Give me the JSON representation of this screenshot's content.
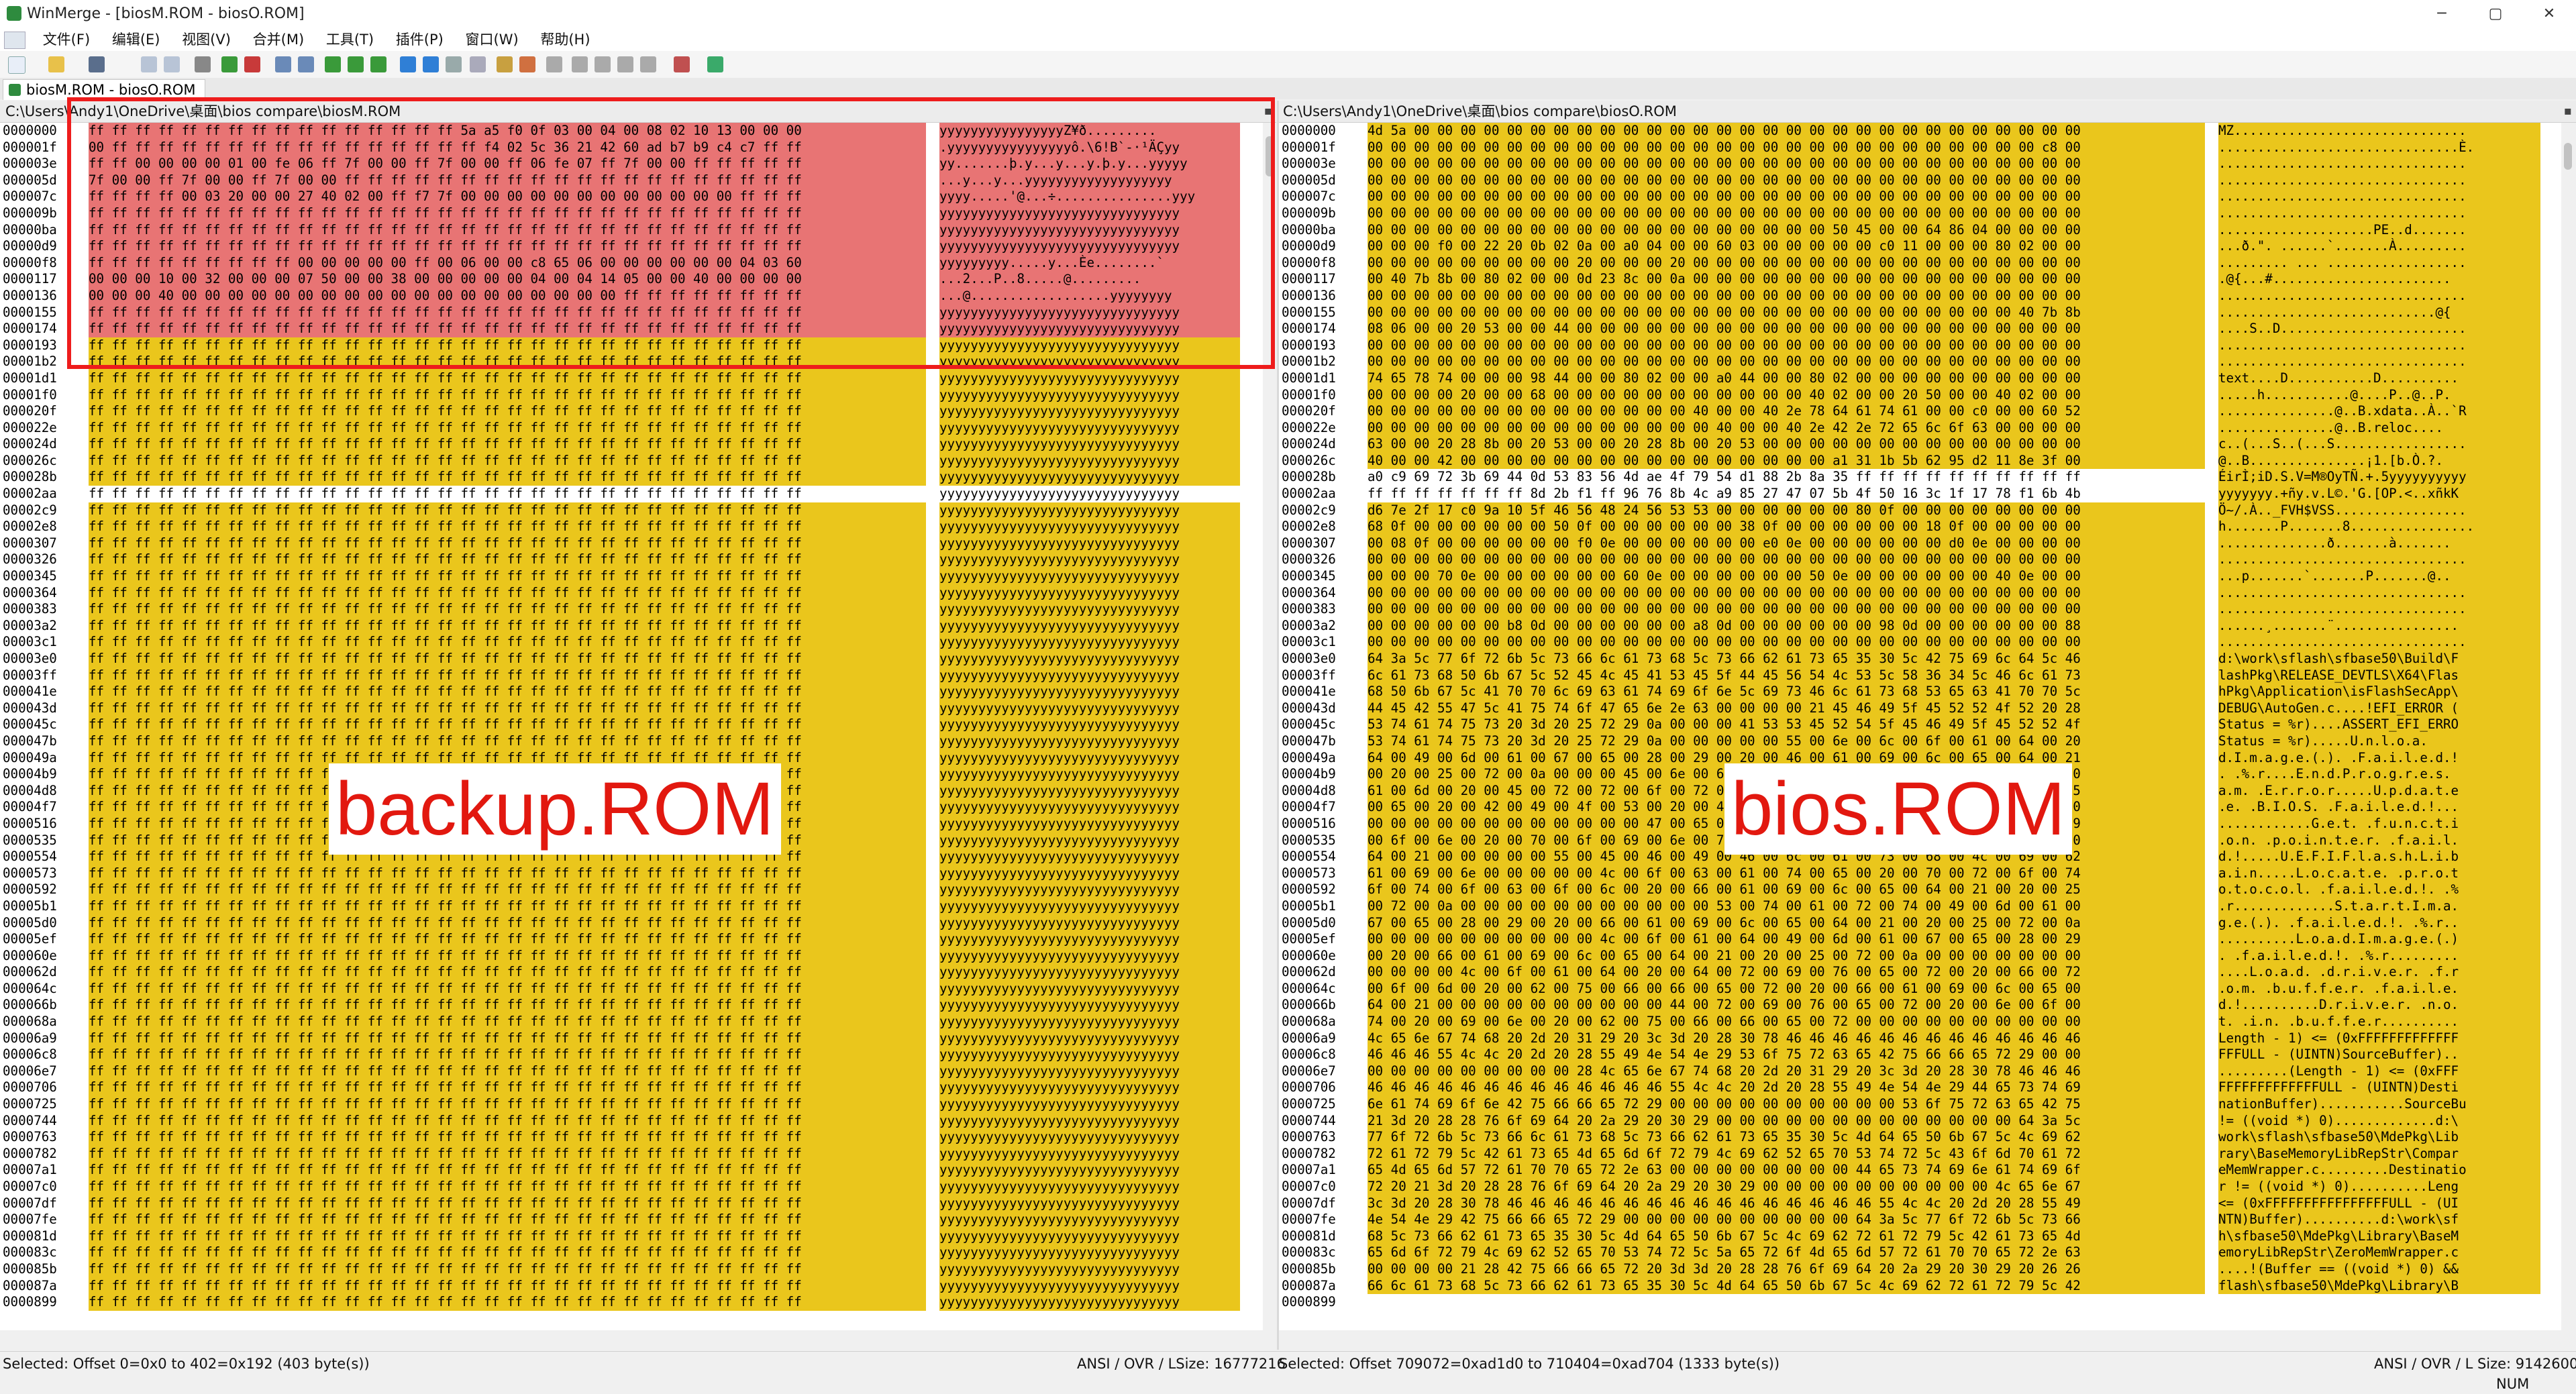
{
  "window": {
    "app_title": "WinMerge - [biosM.ROM - biosO.ROM]",
    "controls": [
      "─",
      "▢",
      "✕"
    ]
  },
  "menu": [
    "文件(F)",
    "编辑(E)",
    "视图(V)",
    "合并(M)",
    "工具(T)",
    "插件(P)",
    "窗口(W)",
    "帮助(H)"
  ],
  "tab": {
    "label": "biosM.ROM - biosO.ROM"
  },
  "left_pane": {
    "path": "C:\\Users\\Andy1\\OneDrive\\桌面\\bios compare\\biosM.ROM",
    "status_selected": "Selected: Offset 0=0x0 to 402=0x192 (403 byte(s))",
    "status_mode": "ANSI / OVR / LSize: 16777216"
  },
  "right_pane": {
    "path": "C:\\Users\\Andy1\\OneDrive\\桌面\\bios compare\\biosO.ROM",
    "status_selected": "Selected: Offset 709072=0xad1d0 to 710404=0xad704 (1333 byte(s))",
    "status_mode": "ANSI / OVR / L Size: 9142600",
    "status_num": "NUM"
  },
  "annotations": {
    "left_label": "backup.ROM",
    "right_label": "bios.ROM"
  },
  "offsets": [
    "0000000",
    "000001f",
    "000003e",
    "000005d",
    "000007c",
    "000009b",
    "00000ba",
    "00000d9",
    "00000f8",
    "0000117",
    "0000136",
    "0000155",
    "0000174",
    "0000193",
    "00001b2",
    "00001d1",
    "00001f0",
    "000020f",
    "000022e",
    "000024d",
    "000026c",
    "000028b",
    "00002aa",
    "00002c9",
    "00002e8",
    "0000307",
    "0000326",
    "0000345",
    "0000364",
    "0000383",
    "00003a2",
    "00003c1",
    "00003e0",
    "00003ff",
    "000041e",
    "000043d",
    "000045c",
    "000047b",
    "000049a",
    "00004b9",
    "00004d8",
    "00004f7",
    "0000516",
    "0000535",
    "0000554",
    "0000573",
    "0000592",
    "00005b1",
    "00005d0",
    "00005ef",
    "000060e",
    "000062d",
    "000064c",
    "000066b",
    "000068a",
    "00006a9",
    "00006c8",
    "00006e7",
    "0000706",
    "0000725",
    "0000744",
    "0000763",
    "0000782",
    "00007a1",
    "00007c0",
    "00007df",
    "00007fe",
    "000081d",
    "000083c",
    "000085b",
    "000087a",
    "0000899"
  ],
  "left_hex": [
    "ff ff ff ff ff ff ff ff ff ff ff ff ff ff ff ff 5a a5 f0 0f 03 00 04 00 08 02 10 13 00 00 00",
    "00 ff ff ff ff ff ff ff ff ff ff ff ff ff ff ff ff f4 02 5c 36 21 42 60 ad b7 b9 c4 c7 ff ff",
    "ff ff 00 00 00 00 01 00 fe 06 ff 7f 00 00 ff 7f 00 00 ff 06 fe 07 ff 7f 00 00 ff ff ff ff ff",
    "7f 00 00 ff 7f 00 00 ff 7f 00 00 ff ff ff ff ff ff ff ff ff ff ff ff ff ff ff ff ff ff ff ff",
    "ff ff ff ff 00 03 20 00 00 27 40 02 00 ff f7 7f 00 00 00 00 00 00 00 00 00 00 00 00 ff ff ff",
    "ff ff ff ff ff ff ff ff ff ff ff ff ff ff ff ff ff ff ff ff ff ff ff ff ff ff ff ff ff ff ff",
    "ff ff ff ff ff ff ff ff ff ff ff ff ff ff ff ff ff ff ff ff ff ff ff ff ff ff ff ff ff ff ff",
    "ff ff ff ff ff ff ff ff ff ff ff ff ff ff ff ff ff ff ff ff ff ff ff ff ff ff ff ff ff ff ff",
    "ff ff ff ff ff ff ff ff ff 00 00 00 00 00 ff 00 06 00 00 c8 65 06 00 00 00 00 00 00 04 03 60",
    "00 00 00 10 00 32 00 00 00 07 50 00 00 38 00 00 00 00 00 04 00 04 14 05 00 00 40 00 00 00 00",
    "00 00 00 40 00 00 00 00 00 00 00 00 00 00 00 00 00 00 00 00 00 00 00 ff ff ff ff ff ff ff ff",
    "ff ff ff ff ff ff ff ff ff ff ff ff ff ff ff ff ff ff ff ff ff ff ff ff ff ff ff ff ff ff ff",
    "ff ff ff ff ff ff ff ff ff ff ff ff ff ff ff ff ff ff ff ff ff ff ff ff ff ff ff ff ff ff ff",
    "ff ff ff ff ff ff ff ff ff ff ff ff ff ff ff ff ff ff ff ff ff ff ff ff ff ff ff ff ff ff ff"
  ],
  "left_ascii": [
    "yyyyyyyyyyyyyyyyZ¥ð.........",
    ".yyyyyyyyyyyyyyyyô.\\6!B`-·¹ÄÇyy",
    "yy.......þ.y...y...y.þ.y...yyyyy",
    "...y...y...yyyyyyyyyyyyyyyyyyy",
    "yyyy.....'@...÷...............yyy",
    "yyyyyyyyyyyyyyyyyyyyyyyyyyyyyyy",
    "yyyyyyyyyyyyyyyyyyyyyyyyyyyyyyy",
    "yyyyyyyyyyyyyyyyyyyyyyyyyyyyyyy",
    "yyyyyyyyy.....y...Èe........`",
    "...2...P..8.....@.........",
    "...@..................yyyyyyyy",
    "yyyyyyyyyyyyyyyyyyyyyyyyyyyyyyy",
    "yyyyyyyyyyyyyyyyyyyyyyyyyyyyyyy",
    "yyyyyyyyyyyyyyyyyyyyyyyyyyyyyyy"
  ],
  "left_fill_hex": "ff ff ff ff ff ff ff ff ff ff ff ff ff ff ff ff ff ff ff ff ff ff ff ff ff ff ff ff ff ff ff",
  "left_fill_ascii": "yyyyyyyyyyyyyyyyyyyyyyyyyyyyyyy",
  "left_white_row_ascii": "yyyyyyyyyyyyyyyyyyyyyyyyyyyyyyy",
  "right_hex": [
    "4d 5a 00 00 00 00 00 00 00 00 00 00 00 00 00 00 00 00 00 00 00 00 00 00 00 00 00 00 00 00 00",
    "00 00 00 00 00 00 00 00 00 00 00 00 00 00 00 00 00 00 00 00 00 00 00 00 00 00 00 00 00 c8 00",
    "00 00 00 00 00 00 00 00 00 00 00 00 00 00 00 00 00 00 00 00 00 00 00 00 00 00 00 00 00 00 00",
    "00 00 00 00 00 00 00 00 00 00 00 00 00 00 00 00 00 00 00 00 00 00 00 00 00 00 00 00 00 00 00",
    "00 00 00 00 00 00 00 00 00 00 00 00 00 00 00 00 00 00 00 00 00 00 00 00 00 00 00 00 00 00 00",
    "00 00 00 00 00 00 00 00 00 00 00 00 00 00 00 00 00 00 00 00 00 00 00 00 00 00 00 00 00 00 00",
    "00 00 00 00 00 00 00 00 00 00 00 00 00 00 00 00 00 00 00 00 50 45 00 00 64 86 04 00 00 00 00",
    "00 00 00 f0 00 22 20 0b 02 0a 00 a0 04 00 00 60 03 00 00 00 00 00 c0 11 00 00 00 80 02 00 00",
    "00 00 00 00 00 00 00 00 00 20 00 00 00 20 00 00 00 00 00 00 00 00 00 00 00 00 00 00 00 00 00",
    "00 40 7b 8b 00 80 02 00 00 0d 23 8c 00 0a 00 00 00 00 00 00 00 00 00 00 00 00 00 00 00 00 00",
    "00 00 00 00 00 00 00 00 00 00 00 00 00 00 00 00 00 00 00 00 00 00 00 00 00 00 00 00 00 00 00",
    "00 00 00 00 00 00 00 00 00 00 00 00 00 00 00 00 00 00 00 00 00 00 00 00 00 00 00 00 40 7b 8b",
    "08 06 00 00 20 53 00 00 44 00 00 00 00 00 00 00 00 00 00 00 00 00 00 00 00 00 00 00 00 00 00",
    "00 00 00 00 00 00 00 00 00 00 00 00 00 00 00 00 00 00 00 00 00 00 00 00 00 00 00 00 00 00 00",
    "00 00 00 00 00 00 00 00 00 00 00 00 00 00 00 00 00 00 00 00 00 00 00 00 00 00 00 00 00 00 00",
    "74 65 78 74 00 00 00 98 44 00 00 80 02 00 00 a0 44 00 00 80 02 00 00 00 00 00 00 00 00 00 00",
    "00 00 00 00 20 00 00 68 00 00 00 00 00 00 00 00 00 00 00 40 02 00 00 20 50 00 00 40 02 00 00",
    "00 00 00 00 00 00 00 00 00 00 00 00 00 00 40 00 00 40 2e 78 64 61 74 61 00 00 c0 00 00 60 52",
    "00 00 00 00 00 00 00 00 00 00 00 00 00 00 00 40 00 00 40 2e 42 2e 72 65 6c 6f 63 00 00 00 00",
    "63 00 00 20 28 8b 00 20 53 00 00 20 28 8b 00 20 53 00 00 00 00 00 00 00 00 00 00 00 00 00 00",
    "40 00 00 42 00 00 00 00 00 00 00 00 00 00 00 00 00 00 00 00 a1 31 1b 5b 62 95 d2 11 8e 3f 00",
    "a0 c9 69 72 3b 69 44 0d 53 83 56 4d ae 4f 79 54 d1 88 2b 8a 35 ff ff ff ff ff ff ff ff ff ff",
    "ff ff ff ff ff ff ff 8d 2b f1 ff 96 76 8b 4c a9 85 27 47 07 5b 4f 50 16 3c 1f 17 78 f1 6b 4b",
    "d6 7e 2f 17 c0 9a 10 5f 46 56 48 24 56 53 53 00 00 00 00 00 00 80 0f 00 00 00 00 00 00 00 00",
    "68 0f 00 00 00 00 00 00 50 0f 00 00 00 00 00 00 38 0f 00 00 00 00 00 00 18 0f 00 00 00 00 00",
    "00 08 0f 00 00 00 00 00 00 f0 0e 00 00 00 00 00 00 e0 0e 00 00 00 00 00 00 d0 0e 00 00 00 00",
    "00 00 00 00 00 00 00 00 00 00 00 00 00 00 00 00 00 00 00 00 00 00 00 00 00 00 00 00 00 00 00",
    "00 00 00 70 0e 00 00 00 00 00 00 60 0e 00 00 00 00 00 00 50 0e 00 00 00 00 00 00 40 0e 00 00",
    "00 00 00 00 00 00 00 00 00 00 00 00 00 00 00 00 00 00 00 00 00 00 00 00 00 00 00 00 00 00 00",
    "00 00 00 00 00 00 00 00 00 00 00 00 00 00 00 00 00 00 00 00 00 00 00 00 00 00 00 00 00 00 00",
    "00 00 00 00 00 00 b8 0d 00 00 00 00 00 00 a8 0d 00 00 00 00 00 00 98 0d 00 00 00 00 00 00 88",
    "00 00 00 00 00 00 00 00 00 00 00 00 00 00 00 00 00 00 00 00 00 00 00 00 00 00 00 00 00 00 00",
    "64 3a 5c 77 6f 72 6b 5c 73 66 6c 61 73 68 5c 73 66 62 61 73 65 35 30 5c 42 75 69 6c 64 5c 46",
    "6c 61 73 68 50 6b 67 5c 52 45 4c 45 41 53 45 5f 44 45 56 54 4c 53 5c 58 36 34 5c 46 6c 61 73",
    "68 50 6b 67 5c 41 70 70 6c 69 63 61 74 69 6f 6e 5c 69 73 46 6c 61 73 68 53 65 63 41 70 70 5c",
    "44 45 42 55 47 5c 41 75 74 6f 47 65 6e 2e 63 00 00 00 00 21 45 46 49 5f 45 52 52 4f 52 20 28",
    "53 74 61 74 75 73 20 3d 20 25 72 29 0a 00 00 00 41 53 53 45 52 54 5f 45 46 49 5f 45 52 52 4f",
    "53 74 61 74 75 73 20 3d 20 25 72 29 0a 00 00 00 00 00 55 00 6e 00 6c 00 6f 00 61 00 64 00 20",
    "64 00 49 00 6d 00 61 00 67 00 65 00 28 00 29 00 20 00 46 00 61 00 69 00 6c 00 65 00 64 00 21",
    "00 20 00 25 00 72 00 0a 00 00 00 45 00 6e 00 64 00 50 00 72 00 6f 00 67 00 72 00 65 00 73 00",
    "61 00 6d 00 20 00 45 00 72 00 72 00 6f 00 72 00 2e 00 00 00 55 00 70 00 64 00 61 00 74 00 65",
    "00 65 00 20 00 42 00 49 00 4f 00 53 00 20 00 46 00 61 00 69 00 6c 00 65 00 64 00 21 00 00 00",
    "00 00 00 00 00 00 00 00 00 00 00 00 47 00 65 00 74 00 20 00 66 00 75 00 6e 00 63 00 74 00 69",
    "00 6f 00 6e 00 20 00 70 00 6f 00 69 00 6e 00 74 00 65 00 72 00 20 00 66 00 61 00 69 00 6c 00",
    "64 00 21 00 00 00 00 00 55 00 45 00 46 00 49 00 46 00 6c 00 61 00 73 00 68 00 4c 00 69 00 62",
    "61 00 69 00 6e 00 00 00 00 00 4c 00 6f 00 63 00 61 00 74 00 65 00 20 00 70 00 72 00 6f 00 74",
    "6f 00 74 00 6f 00 63 00 6f 00 6c 00 20 00 66 00 61 00 69 00 6c 00 65 00 64 00 21 00 20 00 25",
    "00 72 00 0a 00 00 00 00 00 00 00 00 00 00 00 53 00 74 00 61 00 72 00 74 00 49 00 6d 00 61 00",
    "67 00 65 00 28 00 29 00 20 00 66 00 61 00 69 00 6c 00 65 00 64 00 21 00 20 00 25 00 72 00 0a",
    "00 00 00 00 00 00 00 00 00 00 4c 00 6f 00 61 00 64 00 49 00 6d 00 61 00 67 00 65 00 28 00 29",
    "00 20 00 66 00 61 00 69 00 6c 00 65 00 64 00 21 00 20 00 25 00 72 00 0a 00 00 00 00 00 00 00",
    "00 00 00 00 4c 00 6f 00 61 00 64 00 20 00 64 00 72 00 69 00 76 00 65 00 72 00 20 00 66 00 72",
    "00 6f 00 6d 00 20 00 62 00 75 00 66 00 66 00 65 00 72 00 20 00 66 00 61 00 69 00 6c 00 65 00",
    "64 00 21 00 00 00 00 00 00 00 00 00 00 44 00 72 00 69 00 76 00 65 00 72 00 20 00 6e 00 6f 00",
    "74 00 20 00 69 00 6e 00 20 00 62 00 75 00 66 00 66 00 65 00 72 00 00 00 00 00 00 00 00 00 00",
    "4c 65 6e 67 74 68 20 2d 20 31 29 20 3c 3d 20 28 30 78 46 46 46 46 46 46 46 46 46 46 46 46 46",
    "46 46 46 55 4c 4c 20 2d 20 28 55 49 4e 54 4e 29 53 6f 75 72 63 65 42 75 66 66 65 72 29 00 00",
    "00 00 00 00 00 00 00 00 00 28 4c 65 6e 67 74 68 20 2d 20 31 29 20 3c 3d 20 28 30 78 46 46 46",
    "46 46 46 46 46 46 46 46 46 46 46 46 46 55 4c 4c 20 2d 20 28 55 49 4e 54 4e 29 44 65 73 74 69",
    "6e 61 74 69 6f 6e 42 75 66 66 65 72 29 00 00 00 00 00 00 00 00 00 00 53 6f 75 72 63 65 42 75",
    "21 3d 20 28 28 76 6f 69 64 20 2a 29 20 30 29 00 00 00 00 00 00 00 00 00 00 00 00 00 64 3a 5c",
    "77 6f 72 6b 5c 73 66 6c 61 73 68 5c 73 66 62 61 73 65 35 30 5c 4d 64 65 50 6b 67 5c 4c 69 62",
    "72 61 72 79 5c 42 61 73 65 4d 65 6d 6f 72 79 4c 69 62 52 65 70 53 74 72 5c 43 6f 6d 70 61 72",
    "65 4d 65 6d 57 72 61 70 70 65 72 2e 63 00 00 00 00 00 00 00 00 44 65 73 74 69 6e 61 74 69 6f",
    "72 20 21 3d 20 28 28 76 6f 69 64 20 2a 29 20 30 29 00 00 00 00 00 00 00 00 00 00 4c 65 6e 67",
    "3c 3d 20 28 30 78 46 46 46 46 46 46 46 46 46 46 46 46 46 46 46 46 55 4c 4c 20 2d 20 28 55 49",
    "4e 54 4e 29 42 75 66 66 65 72 29 00 00 00 00 00 00 00 00 00 00 64 3a 5c 77 6f 72 6b 5c 73 66",
    "68 5c 73 66 62 61 73 65 35 30 5c 4d 64 65 50 6b 67 5c 4c 69 62 72 61 72 79 5c 42 61 73 65 4d",
    "65 6d 6f 72 79 4c 69 62 52 65 70 53 74 72 5c 5a 65 72 6f 4d 65 6d 57 72 61 70 70 65 72 2e 63",
    "00 00 00 00 21 28 42 75 66 66 65 72 20 3d 3d 20 28 28 76 6f 69 64 20 2a 29 20 30 29 20 26 26",
    "66 6c 61 73 68 5c 73 66 62 61 73 65 35 30 5c 4d 64 65 50 6b 67 5c 4c 69 62 72 61 72 79 5c 42"
  ],
  "right_ascii": [
    "MZ..............................",
    "...............................È.",
    "................................",
    "................................",
    "................................",
    "................................",
    "....................PE..d.......",
    "...ð.\". ......`.......À.........",
    "......... ... ..................",
    ".@{...#.......................",
    "................................",
    "............................@{",
    "....S..D........................",
    "................................",
    "................................",
    "text....D...........D..........",
    ".....h...........@....P..@..P.",
    "...............@..B.xdata..À..`R",
    "...............@..B.reloc....",
    "c..(...S..(...S.................",
    "@..B...............¡1.[b.Ò.?.",
    "ÉirÌ;iD.S.V=M®OyTÑ.+.5yyyyyyyyyy",
    "yyyyyyy.+ñy.v.L©.'G.[OP.<..xñkK",
    "Ö~/.À.._FVH$VSS.................",
    "h.......P.......8................",
    "..............ð.......à.......",
    "................................",
    "...p.......`.......P.......@..",
    "................................",
    "................................",
    "......¸.......¨................",
    "................................",
    "d:\\work\\sflash\\sfbase50\\Build\\F",
    "lashPkg\\RELEASE_DEVTLS\\X64\\Flas",
    "hPkg\\Application\\isFlashSecApp\\",
    "DEBUG\\AutoGen.c....!EFI_ERROR (",
    "Status = %r)....ASSERT_EFI_ERRO",
    "Status = %r).....U.n.l.o.a.",
    "d.I.m.a.g.e.(.). .F.a.i.l.e.d.!",
    ". .%.r....E.n.d.P.r.o.g.r.e.s.",
    "a.m. .E.r.r.o.r.....U.p.d.a.t.e",
    ".e. .B.I.O.S. .F.a.i.l.e.d.!...",
    "............G.e.t. .f.u.n.c.t.i",
    ".o.n. .p.o.i.n.t.e.r. .f.a.i.l.",
    "d.!.....U.E.F.I.F.l.a.s.h.L.i.b",
    "a.i.n.....L.o.c.a.t.e. .p.r.o.t",
    "o.t.o.c.o.l. .f.a.i.l.e.d.!. .%",
    ".r.............S.t.a.r.t.I.m.a.",
    "g.e.(.). .f.a.i.l.e.d.!. .%.r..",
    "..........L.o.a.d.I.m.a.g.e.(.)",
    ". .f.a.i.l.e.d.!. .%.r.........",
    "....L.o.a.d. .d.r.i.v.e.r. .f.r",
    ".o.m. .b.u.f.f.e.r. .f.a.i.l.e.",
    "d.!..........D.r.i.v.e.r. .n.o.",
    "t. .i.n. .b.u.f.f.e.r..........",
    "Length - 1) <= (0xFFFFFFFFFFFFF",
    "FFFULL - (UINTN)SourceBuffer)..",
    ".........(Length - 1) <= (0xFFF",
    "FFFFFFFFFFFFFULL - (UINTN)Desti",
    "nationBuffer)...........SourceBu",
    "!= ((void *) 0).............d:\\",
    "work\\sflash\\sfbase50\\MdePkg\\Lib",
    "rary\\BaseMemoryLibRepStr\\Compar",
    "eMemWrapper.c.........Destinatio",
    "r != ((void *) 0)..........Leng",
    "<= (0xFFFFFFFFFFFFFFFFULL - (UI",
    "NTN)Buffer)..........d:\\work\\sf",
    "h\\sfbase50\\MdePkg\\Library\\BaseM",
    "emoryLibRepStr\\ZeroMemWrapper.c",
    "....!(Buffer == ((void *) 0) &&",
    "flash\\sfbase50\\MdePkg\\Library\\B"
  ]
}
